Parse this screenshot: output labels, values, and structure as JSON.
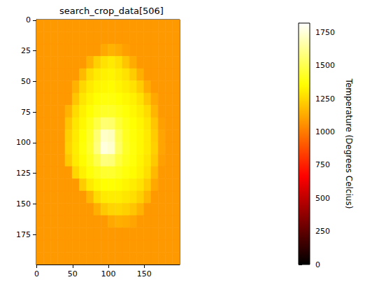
{
  "chart_data": {
    "type": "heatmap",
    "title": "search_crop_data[506]",
    "color": "hot",
    "grid": false,
    "x_bins": [
      -0.5,
      9.5,
      19.5,
      29.5,
      39.5,
      49.5,
      59.5,
      69.5,
      79.5,
      89.5,
      99.5,
      109.5,
      119.5,
      129.5,
      139.5,
      149.5,
      159.5,
      169.5,
      179.5,
      189.5,
      199.5
    ],
    "y_bins": [
      -0.5,
      9.5,
      19.5,
      29.5,
      39.5,
      49.5,
      59.5,
      69.5,
      79.5,
      89.5,
      99.5,
      109.5,
      119.5,
      129.5,
      139.5,
      149.5,
      159.5,
      169.5,
      179.5,
      189.5,
      199.5
    ],
    "xlim": [
      -0.5,
      199.5
    ],
    "ylim": [
      199.5,
      -0.5
    ],
    "xticks": [
      0,
      50,
      100,
      150
    ],
    "yticks": [
      0,
      25,
      50,
      75,
      100,
      125,
      150,
      175
    ],
    "cells": [
      [
        1080,
        1080,
        1080,
        1080,
        1080,
        1080,
        1080,
        1080,
        1080,
        1080,
        1080,
        1080,
        1080,
        1080,
        1080,
        1080,
        1080,
        1080,
        1080,
        1080
      ],
      [
        1080,
        1080,
        1080,
        1080,
        1080,
        1080,
        1080,
        1080,
        1080,
        1080,
        1080,
        1080,
        1080,
        1080,
        1080,
        1080,
        1080,
        1080,
        1080,
        1080
      ],
      [
        1080,
        1080,
        1080,
        1080,
        1080,
        1080,
        1080,
        1080,
        1080,
        1120,
        1150,
        1130,
        1100,
        1080,
        1080,
        1080,
        1080,
        1080,
        1080,
        1080
      ],
      [
        1080,
        1080,
        1080,
        1080,
        1080,
        1080,
        1080,
        1150,
        1230,
        1280,
        1300,
        1270,
        1200,
        1130,
        1080,
        1080,
        1080,
        1080,
        1080,
        1080
      ],
      [
        1080,
        1080,
        1080,
        1080,
        1080,
        1080,
        1170,
        1260,
        1300,
        1320,
        1330,
        1310,
        1280,
        1220,
        1140,
        1080,
        1080,
        1080,
        1080,
        1080
      ],
      [
        1080,
        1080,
        1080,
        1080,
        1080,
        1150,
        1250,
        1300,
        1330,
        1340,
        1350,
        1330,
        1310,
        1280,
        1220,
        1130,
        1080,
        1080,
        1080,
        1080
      ],
      [
        1080,
        1080,
        1080,
        1080,
        1080,
        1200,
        1290,
        1330,
        1360,
        1380,
        1380,
        1360,
        1340,
        1320,
        1280,
        1200,
        1120,
        1080,
        1080,
        1080
      ],
      [
        1080,
        1080,
        1080,
        1080,
        1150,
        1260,
        1320,
        1360,
        1400,
        1430,
        1430,
        1400,
        1370,
        1340,
        1310,
        1260,
        1160,
        1080,
        1080,
        1080
      ],
      [
        1080,
        1080,
        1080,
        1080,
        1200,
        1290,
        1340,
        1400,
        1480,
        1560,
        1550,
        1460,
        1400,
        1360,
        1330,
        1290,
        1200,
        1100,
        1080,
        1080
      ],
      [
        1080,
        1080,
        1080,
        1080,
        1230,
        1300,
        1360,
        1430,
        1560,
        1720,
        1700,
        1520,
        1420,
        1370,
        1340,
        1300,
        1220,
        1110,
        1080,
        1080
      ],
      [
        1080,
        1080,
        1080,
        1080,
        1240,
        1310,
        1370,
        1440,
        1580,
        1760,
        1730,
        1540,
        1430,
        1380,
        1340,
        1300,
        1230,
        1110,
        1080,
        1080
      ],
      [
        1080,
        1080,
        1080,
        1080,
        1210,
        1300,
        1350,
        1410,
        1490,
        1580,
        1570,
        1470,
        1410,
        1370,
        1330,
        1290,
        1210,
        1100,
        1080,
        1080
      ],
      [
        1080,
        1080,
        1080,
        1080,
        1080,
        1250,
        1320,
        1370,
        1410,
        1440,
        1440,
        1410,
        1380,
        1350,
        1320,
        1270,
        1170,
        1080,
        1080,
        1080
      ],
      [
        1080,
        1080,
        1080,
        1080,
        1080,
        1080,
        1220,
        1300,
        1340,
        1360,
        1360,
        1350,
        1330,
        1310,
        1280,
        1220,
        1120,
        1080,
        1080,
        1080
      ],
      [
        1080,
        1080,
        1080,
        1080,
        1080,
        1080,
        1080,
        1160,
        1260,
        1300,
        1310,
        1310,
        1290,
        1270,
        1230,
        1160,
        1080,
        1080,
        1080,
        1080
      ],
      [
        1080,
        1080,
        1080,
        1080,
        1080,
        1080,
        1080,
        1080,
        1140,
        1210,
        1240,
        1250,
        1230,
        1200,
        1150,
        1080,
        1080,
        1080,
        1080,
        1080
      ],
      [
        1080,
        1080,
        1080,
        1080,
        1080,
        1080,
        1080,
        1080,
        1080,
        1080,
        1120,
        1140,
        1130,
        1110,
        1080,
        1080,
        1080,
        1080,
        1080,
        1080
      ],
      [
        1080,
        1080,
        1080,
        1080,
        1080,
        1080,
        1080,
        1080,
        1080,
        1080,
        1080,
        1080,
        1080,
        1080,
        1080,
        1080,
        1080,
        1080,
        1080,
        1080
      ],
      [
        1080,
        1080,
        1080,
        1080,
        1080,
        1080,
        1080,
        1080,
        1080,
        1080,
        1080,
        1080,
        1080,
        1080,
        1080,
        1080,
        1080,
        1080,
        1080,
        1080
      ],
      [
        1080,
        1080,
        1080,
        1080,
        1080,
        1080,
        1080,
        1080,
        1080,
        1080,
        1080,
        1080,
        1080,
        1080,
        1080,
        1080,
        1080,
        1080,
        1080,
        1080
      ]
    ],
    "colorbar": {
      "label": "Temperature (Degrees Celcius)",
      "range": [
        0,
        1820
      ],
      "ticks": [
        0,
        250,
        500,
        750,
        1000,
        1250,
        1500,
        1750
      ]
    }
  }
}
